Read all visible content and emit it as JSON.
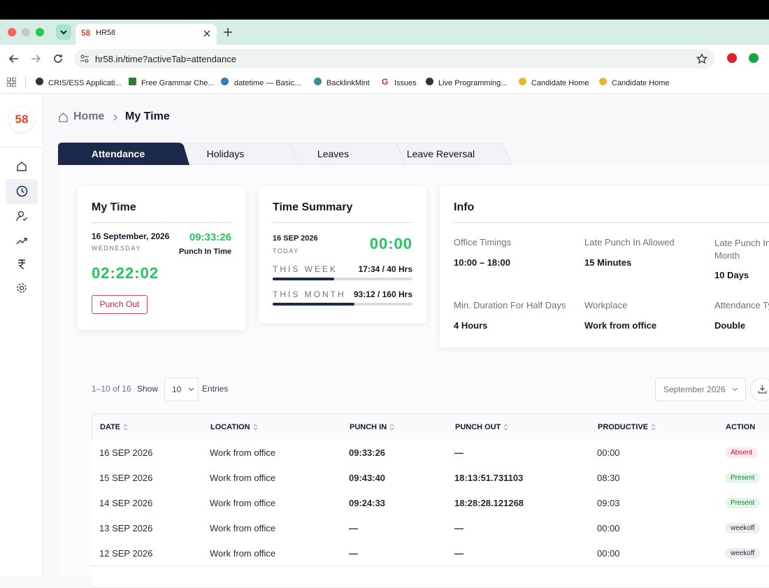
{
  "browser": {
    "tab_icon": "58",
    "tab_title": "HR58",
    "url": "hr58.in/time?activeTab=attendance",
    "bookmarks": [
      "CRIS/ESS Applicati...",
      "Free Grammar Che...",
      "datetime — Basic...",
      "BacklinkMint",
      "Issues",
      "Live Programming...",
      "Candidate Home",
      "Candidate Home"
    ]
  },
  "sidebar": {
    "logo": "58"
  },
  "breadcrumb": [
    "Home",
    "My Time"
  ],
  "tabs": [
    "Attendance",
    "Holidays",
    "Leaves",
    "Leave Reversal"
  ],
  "my_time": {
    "title": "My Time",
    "date": "16 September, 2026",
    "weekday": "WEDNESDAY",
    "punch_in_time": "09:33:26",
    "punch_in_label": "Punch In Time",
    "elapsed": "02:22:02",
    "button": "Punch Out"
  },
  "time_summary": {
    "title": "Time Summary",
    "date": "16 SEP 2026",
    "day": "TODAY",
    "total": "00:00",
    "rows": [
      {
        "label": "THIS WEEK",
        "value": "17:34 / 40 Hrs"
      },
      {
        "label": "THIS MONTH",
        "value": "93:12 / 160 Hrs"
      }
    ]
  },
  "info": {
    "title": "Info",
    "items": [
      {
        "label": "Office Timings",
        "value": "10:00 – 18:00"
      },
      {
        "label": "Late Punch In Allowed",
        "value": "15 Minutes"
      },
      {
        "label": "Late Punch In Month",
        "value": "10 Days"
      },
      {
        "label": "Min. Duration For Half Days",
        "value": "4 Hours"
      },
      {
        "label": "Workplace",
        "value": "Work from office"
      },
      {
        "label": "Attendance Type",
        "value": "Double"
      }
    ]
  },
  "controls": {
    "range": "1–10 of 16",
    "show": "Show",
    "entries_value": "10",
    "entries": "Entries",
    "month": "September 2026"
  },
  "table": {
    "headers": [
      "DATE",
      "LOCATION",
      "PUNCH IN",
      "PUNCH OUT",
      "PRODUCTIVE",
      "ACTION"
    ],
    "rows": [
      [
        "16 SEP 2026",
        "Work from office",
        "09:33:26",
        "—",
        "00:00",
        "Absent"
      ],
      [
        "15 SEP 2026",
        "Work from office",
        "09:43:40",
        "18:13:51.731103",
        "08:30",
        "Present"
      ],
      [
        "14 SEP 2026",
        "Work from office",
        "09:24:33",
        "18:28:28.121268",
        "09:03",
        "Present"
      ],
      [
        "13 SEP 2026",
        "Work from office",
        "—",
        "—",
        "00:00",
        "weekoff"
      ],
      [
        "12 SEP 2026",
        "Work from office",
        "—",
        "—",
        "00:00",
        "weekoff"
      ]
    ]
  }
}
